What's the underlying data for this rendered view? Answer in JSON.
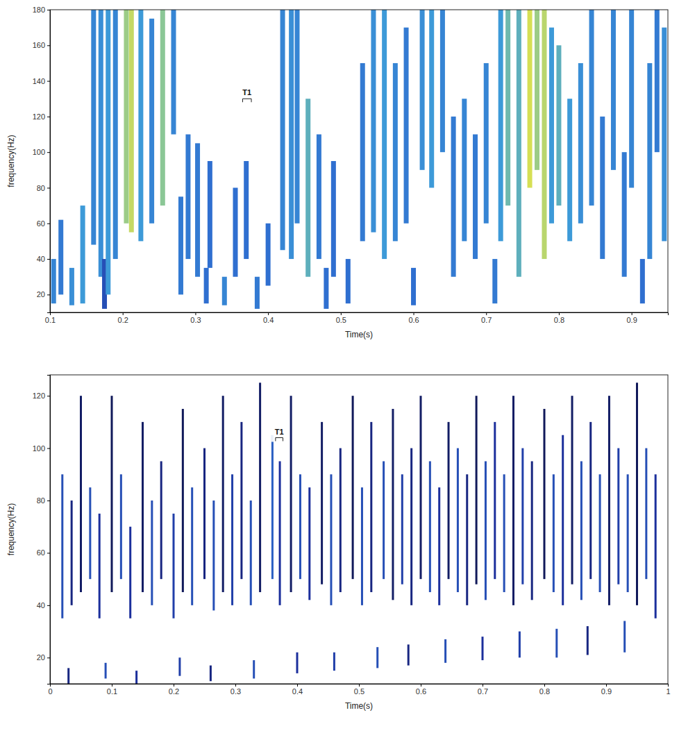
{
  "chart_data": [
    {
      "type": "spectrogram",
      "xlabel": "Time(s)",
      "ylabel": "frequency(Hz)",
      "xlim": [
        0.1,
        0.95
      ],
      "xticks": [
        0.1,
        0.2,
        0.3,
        0.4,
        0.5,
        0.6,
        0.7,
        0.8,
        0.9
      ],
      "ylim": [
        10,
        180
      ],
      "yticks": [
        20,
        40,
        60,
        80,
        100,
        120,
        140,
        160,
        180
      ],
      "clim": [
        0,
        1
      ],
      "t": [
        0.105,
        0.115,
        0.13,
        0.145,
        0.16,
        0.17,
        0.175,
        0.18,
        0.19,
        0.205,
        0.212,
        0.225,
        0.24,
        0.255,
        0.27,
        0.28,
        0.29,
        0.303,
        0.315,
        0.32,
        0.34,
        0.355,
        0.37,
        0.385,
        0.4,
        0.42,
        0.432,
        0.44,
        0.455,
        0.47,
        0.48,
        0.49,
        0.51,
        0.53,
        0.545,
        0.56,
        0.575,
        0.59,
        0.6,
        0.612,
        0.625,
        0.64,
        0.655,
        0.67,
        0.685,
        0.7,
        0.712,
        0.72,
        0.73,
        0.745,
        0.76,
        0.77,
        0.78,
        0.79,
        0.8,
        0.815,
        0.83,
        0.845,
        0.86,
        0.875,
        0.89,
        0.9,
        0.915,
        0.925,
        0.935,
        0.945
      ],
      "f_low": [
        15,
        20,
        14,
        15,
        48,
        30,
        12,
        20,
        40,
        60,
        55,
        50,
        60,
        70,
        110,
        20,
        40,
        30,
        15,
        35,
        14,
        30,
        40,
        12,
        25,
        45,
        40,
        60,
        30,
        40,
        12,
        30,
        15,
        50,
        55,
        40,
        50,
        60,
        14,
        90,
        80,
        100,
        30,
        50,
        40,
        60,
        15,
        50,
        70,
        30,
        80,
        90,
        40,
        60,
        70,
        50,
        60,
        70,
        40,
        90,
        30,
        80,
        15,
        40,
        100,
        50
      ],
      "f_high": [
        40,
        62,
        35,
        70,
        180,
        180,
        40,
        180,
        180,
        180,
        180,
        180,
        175,
        180,
        180,
        75,
        110,
        105,
        35,
        95,
        30,
        80,
        95,
        30,
        60,
        180,
        180,
        180,
        130,
        110,
        35,
        95,
        40,
        150,
        180,
        180,
        150,
        170,
        35,
        180,
        180,
        180,
        120,
        130,
        110,
        150,
        40,
        180,
        180,
        180,
        180,
        180,
        180,
        170,
        160,
        130,
        150,
        180,
        120,
        180,
        100,
        180,
        40,
        150,
        180,
        170
      ],
      "level": [
        0.5,
        0.45,
        0.55,
        0.6,
        0.5,
        0.55,
        0.3,
        0.6,
        0.5,
        0.85,
        0.92,
        0.6,
        0.5,
        0.82,
        0.5,
        0.45,
        0.45,
        0.45,
        0.4,
        0.4,
        0.5,
        0.4,
        0.4,
        0.45,
        0.4,
        0.5,
        0.55,
        0.5,
        0.7,
        0.45,
        0.4,
        0.4,
        0.4,
        0.45,
        0.55,
        0.6,
        0.5,
        0.45,
        0.4,
        0.55,
        0.6,
        0.5,
        0.45,
        0.5,
        0.45,
        0.5,
        0.45,
        0.6,
        0.75,
        0.7,
        0.95,
        0.85,
        0.9,
        0.6,
        0.7,
        0.6,
        0.55,
        0.5,
        0.45,
        0.5,
        0.45,
        0.5,
        0.4,
        0.5,
        0.45,
        0.55
      ],
      "annotations": [
        {
          "text": "T1",
          "x": 0.365,
          "x_end": 0.377,
          "y": 130
        }
      ]
    },
    {
      "type": "spectrogram",
      "xlabel": "Time(s)",
      "ylabel": "frequency(Hz)",
      "xlim": [
        0,
        1
      ],
      "xticks": [
        0,
        0.1,
        0.2,
        0.3,
        0.4,
        0.5,
        0.6,
        0.7,
        0.8,
        0.9,
        1
      ],
      "ylim": [
        10,
        128
      ],
      "yticks": [
        20,
        40,
        60,
        80,
        100,
        120
      ],
      "clim": [
        0,
        1
      ],
      "t": [
        0.02,
        0.035,
        0.05,
        0.065,
        0.08,
        0.1,
        0.115,
        0.13,
        0.15,
        0.165,
        0.18,
        0.2,
        0.215,
        0.23,
        0.25,
        0.265,
        0.28,
        0.295,
        0.31,
        0.325,
        0.34,
        0.36,
        0.372,
        0.39,
        0.405,
        0.42,
        0.44,
        0.455,
        0.47,
        0.49,
        0.505,
        0.52,
        0.54,
        0.555,
        0.57,
        0.585,
        0.6,
        0.615,
        0.63,
        0.645,
        0.66,
        0.675,
        0.69,
        0.705,
        0.72,
        0.735,
        0.75,
        0.765,
        0.78,
        0.8,
        0.815,
        0.83,
        0.845,
        0.86,
        0.875,
        0.89,
        0.905,
        0.92,
        0.935,
        0.95,
        0.965,
        0.98,
        0.03,
        0.09,
        0.14,
        0.21,
        0.26,
        0.33,
        0.4,
        0.46,
        0.53,
        0.58,
        0.64,
        0.7,
        0.76,
        0.82,
        0.87,
        0.93
      ],
      "f_low": [
        35,
        40,
        45,
        50,
        35,
        45,
        50,
        35,
        45,
        40,
        50,
        35,
        45,
        40,
        50,
        38,
        45,
        40,
        50,
        40,
        45,
        50,
        40,
        45,
        50,
        42,
        48,
        40,
        45,
        50,
        40,
        45,
        50,
        42,
        48,
        40,
        50,
        45,
        40,
        50,
        45,
        40,
        48,
        42,
        50,
        45,
        40,
        48,
        42,
        50,
        45,
        40,
        48,
        42,
        50,
        45,
        40,
        48,
        45,
        40,
        50,
        35,
        10,
        12,
        10,
        13,
        11,
        12,
        14,
        15,
        16,
        17,
        18,
        19,
        20,
        20,
        21,
        22
      ],
      "f_high": [
        90,
        80,
        120,
        85,
        75,
        120,
        90,
        70,
        110,
        80,
        95,
        75,
        115,
        85,
        100,
        80,
        120,
        90,
        110,
        80,
        125,
        105,
        95,
        120,
        90,
        85,
        110,
        90,
        100,
        120,
        85,
        110,
        95,
        115,
        90,
        100,
        120,
        95,
        85,
        110,
        100,
        90,
        120,
        95,
        110,
        90,
        120,
        100,
        95,
        115,
        90,
        105,
        120,
        95,
        110,
        90,
        120,
        100,
        90,
        125,
        100,
        90,
        16,
        18,
        15,
        20,
        17,
        19,
        22,
        22,
        24,
        25,
        27,
        28,
        30,
        31,
        32,
        34
      ],
      "level": [
        0.3,
        0.15,
        0.1,
        0.3,
        0.2,
        0.08,
        0.3,
        0.2,
        0.1,
        0.3,
        0.15,
        0.25,
        0.08,
        0.3,
        0.15,
        0.3,
        0.1,
        0.25,
        0.15,
        0.3,
        0.1,
        0.35,
        0.2,
        0.1,
        0.3,
        0.2,
        0.1,
        0.3,
        0.15,
        0.08,
        0.3,
        0.15,
        0.3,
        0.1,
        0.25,
        0.15,
        0.1,
        0.3,
        0.2,
        0.1,
        0.3,
        0.15,
        0.08,
        0.3,
        0.2,
        0.3,
        0.1,
        0.25,
        0.15,
        0.08,
        0.3,
        0.2,
        0.1,
        0.3,
        0.15,
        0.3,
        0.1,
        0.25,
        0.3,
        0.08,
        0.3,
        0.2,
        0.15,
        0.3,
        0.2,
        0.25,
        0.15,
        0.3,
        0.2,
        0.25,
        0.3,
        0.15,
        0.3,
        0.2,
        0.25,
        0.3,
        0.15,
        0.3
      ],
      "annotations": [
        {
          "text": "T1",
          "x": 0.365,
          "x_end": 0.377,
          "y": 104
        }
      ]
    }
  ]
}
